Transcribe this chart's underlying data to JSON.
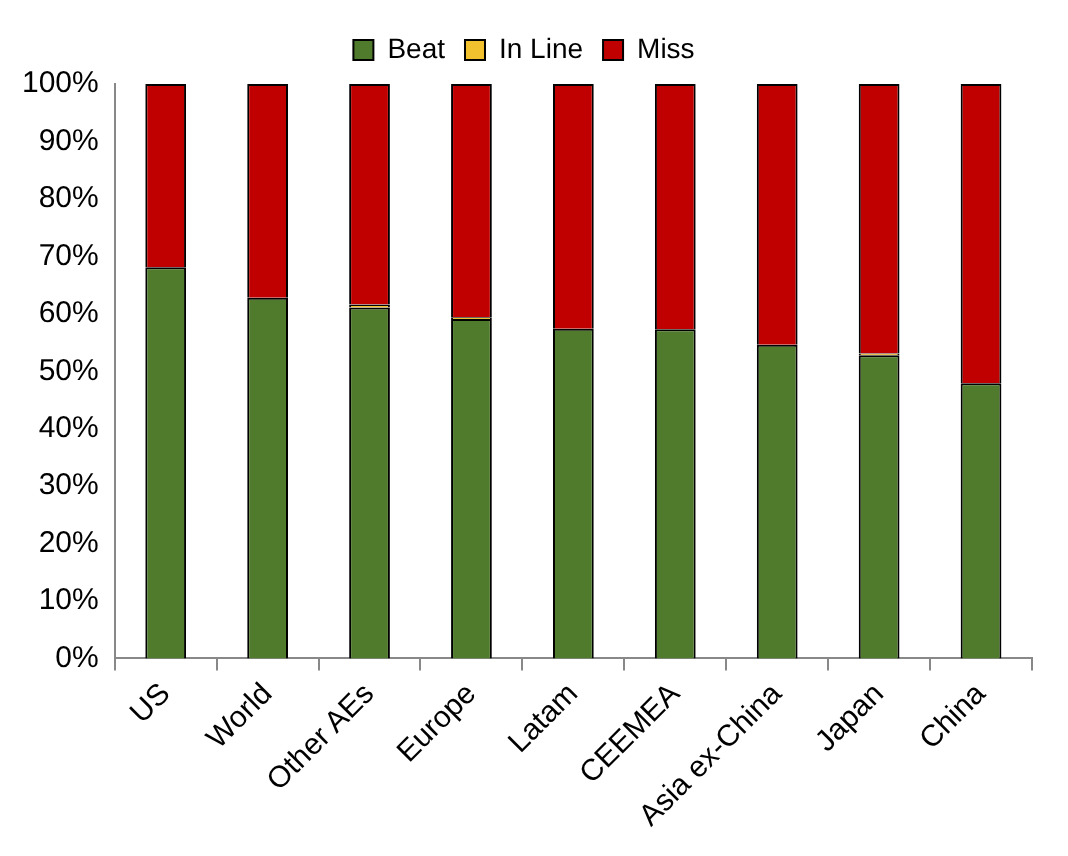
{
  "chart_data": {
    "type": "bar",
    "stacked": true,
    "categories": [
      "US",
      "World",
      "Other AEs",
      "Europe",
      "Latam",
      "CEEMEA",
      "Asia ex-China",
      "Japan",
      "China"
    ],
    "series": [
      {
        "name": "Beat",
        "color": "#507a2c",
        "values": [
          68.1,
          62.8,
          61.1,
          59.1,
          57.4,
          57.3,
          54.6,
          52.8,
          47.9
        ]
      },
      {
        "name": "In Line",
        "color": "#f2c12e",
        "values": [
          null,
          null,
          0.5,
          0.3,
          0,
          0,
          0,
          0.3,
          0
        ]
      },
      {
        "name": "Miss",
        "color": "#c00000",
        "values": [
          31.9,
          37.2,
          38.4,
          40.6,
          42.6,
          42.7,
          45.4,
          46.9,
          52.1
        ]
      }
    ],
    "ylim": [
      0,
      100
    ],
    "yticks": [
      {
        "value": 0,
        "label": "0%"
      },
      {
        "value": 10,
        "label": "10%"
      },
      {
        "value": 20,
        "label": "20%"
      },
      {
        "value": 30,
        "label": "30%"
      },
      {
        "value": 40,
        "label": "40%"
      },
      {
        "value": 50,
        "label": "50%"
      },
      {
        "value": 60,
        "label": "60%"
      },
      {
        "value": 70,
        "label": "70%"
      },
      {
        "value": 80,
        "label": "80%"
      },
      {
        "value": 90,
        "label": "90%"
      },
      {
        "value": 100,
        "label": "100%"
      }
    ],
    "grid": false,
    "legend": "top"
  }
}
